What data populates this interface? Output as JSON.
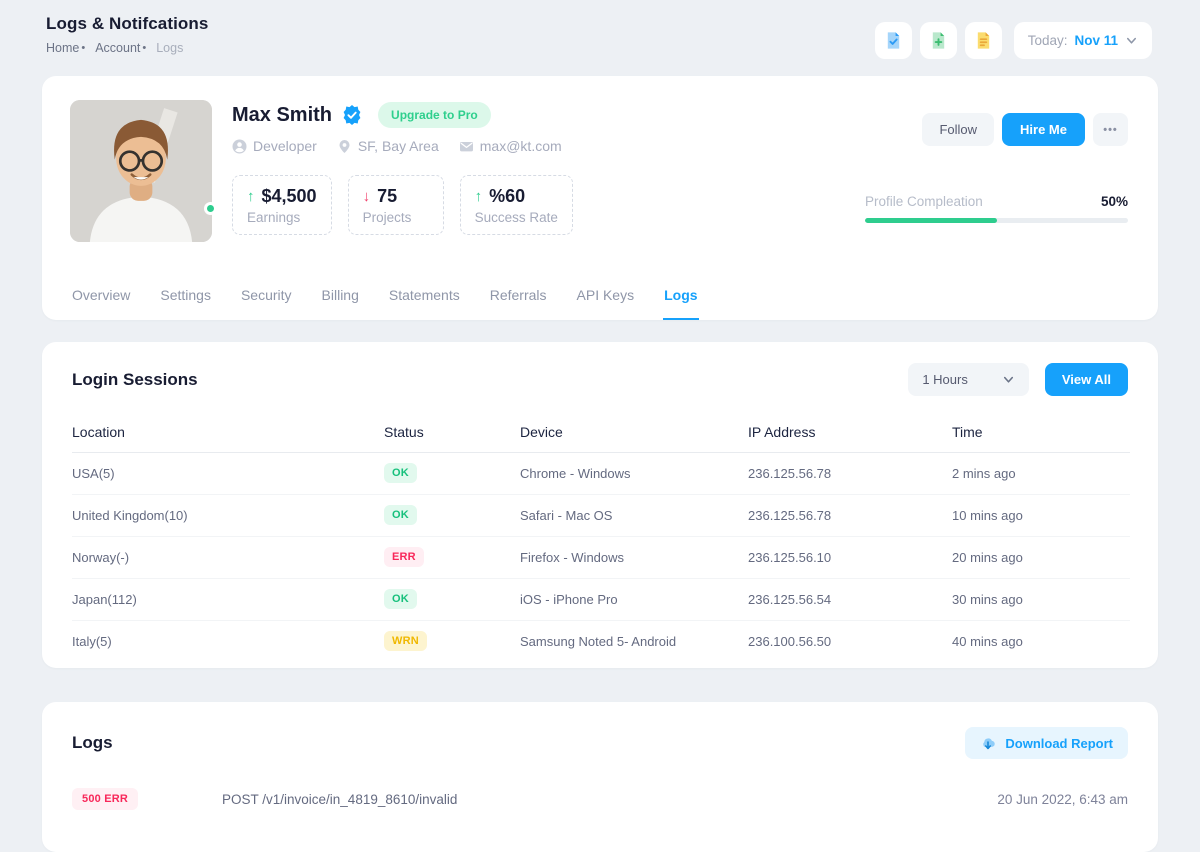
{
  "page": {
    "title": "Logs & Notifcations",
    "breadcrumb": [
      {
        "label": "Home"
      },
      {
        "label": "Account"
      },
      {
        "label": "Logs"
      }
    ]
  },
  "toolbar": {
    "buttons": [
      {
        "name": "file-check-button",
        "icon": "file-check-icon"
      },
      {
        "name": "file-add-button",
        "icon": "file-plus-icon"
      },
      {
        "name": "file-report-button",
        "icon": "file-lines-icon"
      }
    ],
    "date": {
      "prefix": "Today:",
      "value": "Nov 11"
    }
  },
  "profile": {
    "name": "Max Smith",
    "upgrade_badge": "Upgrade to Pro",
    "meta": [
      {
        "icon": "user-icon",
        "label": "Developer"
      },
      {
        "icon": "map-pin-icon",
        "label": "SF, Bay Area"
      },
      {
        "icon": "mail-icon",
        "label": "max@kt.com"
      }
    ],
    "stats": [
      {
        "trend": "up",
        "value": "$4,500",
        "label": "Earnings"
      },
      {
        "trend": "down",
        "value": "75",
        "label": "Projects"
      },
      {
        "trend": "up",
        "value": "%60",
        "label": "Success Rate"
      }
    ],
    "actions": {
      "follow": "Follow",
      "hire": "Hire Me",
      "more": "•••"
    },
    "progress": {
      "label": "Profile Compleation",
      "value": "50%",
      "percent": 50
    }
  },
  "tabs": [
    {
      "label": "Overview",
      "active": false
    },
    {
      "label": "Settings",
      "active": false
    },
    {
      "label": "Security",
      "active": false
    },
    {
      "label": "Billing",
      "active": false
    },
    {
      "label": "Statements",
      "active": false
    },
    {
      "label": "Referrals",
      "active": false
    },
    {
      "label": "API Keys",
      "active": false
    },
    {
      "label": "Logs",
      "active": true
    }
  ],
  "sessions": {
    "title": "Login Sessions",
    "filter_value": "1 Hours",
    "view_all_label": "View All",
    "columns": [
      "Location",
      "Status",
      "Device",
      "IP Address",
      "Time"
    ],
    "rows": [
      {
        "location": "USA(5)",
        "status": "OK",
        "status_type": "ok",
        "device": "Chrome - Windows",
        "ip": "236.125.56.78",
        "time": "2 mins ago"
      },
      {
        "location": "United Kingdom(10)",
        "status": "OK",
        "status_type": "ok",
        "device": "Safari - Mac OS",
        "ip": "236.125.56.78",
        "time": "10 mins ago"
      },
      {
        "location": "Norway(-)",
        "status": "ERR",
        "status_type": "err",
        "device": "Firefox - Windows",
        "ip": "236.125.56.10",
        "time": "20 mins ago"
      },
      {
        "location": "Japan(112)",
        "status": "OK",
        "status_type": "ok",
        "device": "iOS - iPhone Pro",
        "ip": "236.125.56.54",
        "time": "30 mins ago"
      },
      {
        "location": "Italy(5)",
        "status": "WRN",
        "status_type": "wrn",
        "device": "Samsung Noted 5- Android",
        "ip": "236.100.56.50",
        "time": "40 mins ago"
      }
    ]
  },
  "logs": {
    "title": "Logs",
    "download_label": "Download Report",
    "rows": [
      {
        "badge": "500 ERR",
        "badge_type": "err",
        "path": "POST /v1/invoice/in_4819_8610/invalid",
        "time": "20 Jun 2022, 6:43 am"
      }
    ]
  },
  "colors": {
    "primary": "#16a1fb",
    "success": "#2ecd8e",
    "danger": "#f8285a",
    "warning": "#f0b800"
  }
}
